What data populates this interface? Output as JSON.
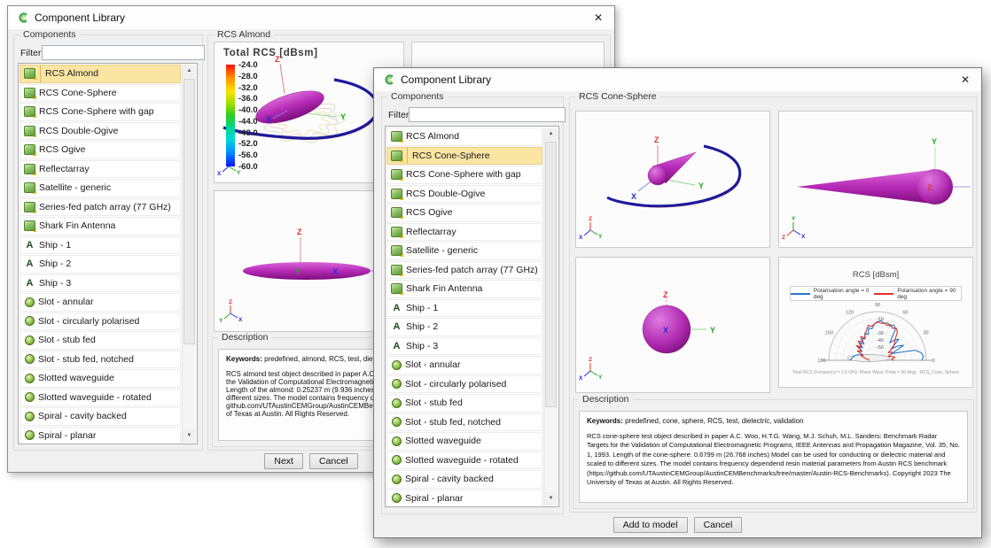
{
  "axis": {
    "x": "X",
    "y": "Y",
    "z": "Z"
  },
  "icons": {
    "close": "✕",
    "scroll_up": "▲",
    "scroll_down": "▼",
    "ship_glyph": "A"
  },
  "components": {
    "items": [
      {
        "label": "RCS Almond",
        "icon": "component"
      },
      {
        "label": "RCS Cone-Sphere",
        "icon": "component"
      },
      {
        "label": "RCS Cone-Sphere with gap",
        "icon": "component"
      },
      {
        "label": "RCS Double-Ogive",
        "icon": "component"
      },
      {
        "label": "RCS Ogive",
        "icon": "component"
      },
      {
        "label": "Reflectarray",
        "icon": "component"
      },
      {
        "label": "Satellite - generic",
        "icon": "component"
      },
      {
        "label": "Series-fed patch array (77 GHz)",
        "icon": "component"
      },
      {
        "label": "Shark Fin Antenna",
        "icon": "component"
      },
      {
        "label": "Ship - 1",
        "icon": "ship"
      },
      {
        "label": "Ship - 2",
        "icon": "ship"
      },
      {
        "label": "Ship - 3",
        "icon": "ship"
      },
      {
        "label": "Slot - annular",
        "icon": "sphere"
      },
      {
        "label": "Slot - circularly polarised",
        "icon": "sphere"
      },
      {
        "label": "Slot - stub fed",
        "icon": "sphere"
      },
      {
        "label": "Slot - stub fed, notched",
        "icon": "sphere"
      },
      {
        "label": "Slotted waveguide",
        "icon": "sphere"
      },
      {
        "label": "Slotted waveguide - rotated",
        "icon": "sphere"
      },
      {
        "label": "Spiral - cavity backed",
        "icon": "sphere"
      },
      {
        "label": "Spiral - planar",
        "icon": "sphere"
      }
    ]
  },
  "back_window": {
    "title": "Component Library",
    "components_label": "Components",
    "filter_label": "Filter",
    "filter_value": "",
    "selected_index": 0,
    "group_title": "RCS Almond",
    "preview_title": "Total RCS [dBsm]",
    "colorbar_labels": [
      "-24.0",
      "-28.0",
      "-32.0",
      "-36.0",
      "-40.0",
      "-44.0",
      "-48.0",
      "-52.0",
      "-56.0",
      "-60.0"
    ],
    "description_label": "Description",
    "keywords_label": "Keywords:",
    "keywords": " predefined, almond, RCS, test, dielectric,",
    "description_lines": [
      "RCS almond test object described in paper A.C. Woo, H.T.G. Wang, M.J. Schuh, M.L. Sanders: Benchmark Radar Targets for",
      "the Validation of Computational Electromagnetic Programs, IEEE Antennas and Propagation Magazine, Vol. 35, No. 1, 1993.",
      "Length of the almond: 0.25237 m (9.936 inches) Model can be used for conducting or dielectric material and scaled to",
      "different sizes. The model contains frequency dependend resin material parameters from Austin RCS benchmark (https://",
      "github.com/UTAustinCEMGroup/AustinCEMBenchmarks/tree/master/Austin-RCS-Benchmarks). Copyright 2023 The University",
      "of Texas at Austin. All Rights Reserved."
    ],
    "next_button": "Next",
    "cancel_button": "Cancel"
  },
  "front_window": {
    "title": "Component Library",
    "components_label": "Components",
    "filter_label": "Filter",
    "filter_value": "",
    "selected_index": 1,
    "group_title": "RCS Cone-Sphere",
    "chart": {
      "type": "polar",
      "title": "RCS [dBsm]",
      "legend": [
        {
          "label": "Polarisation angle = 0 deg",
          "color": "#2878c8"
        },
        {
          "label": "Polarisation angle = 90 deg",
          "color": "#e03028"
        }
      ],
      "angle_ticks": [
        "0",
        "30",
        "60",
        "90",
        "120",
        "150",
        "180"
      ],
      "radial_ticks": [
        "-10",
        "-30",
        "-40",
        "-50"
      ],
      "radial_tick_radii": [
        47,
        31,
        23,
        15
      ],
      "angle_step_deg": 5,
      "caption": "Total RCS (Frequency = 3.0 GHz; Plane Wave Theta = 90 deg) - RCS_Cone_Sphere",
      "series": [
        {
          "name": "Polarisation angle = 0 deg",
          "color": "#2878c8",
          "radii": [
            50,
            52,
            50,
            44,
            26,
            18,
            34,
            28,
            20,
            34,
            30,
            24,
            40,
            44,
            41,
            44,
            42,
            45,
            43,
            41,
            36,
            38,
            31,
            34,
            28,
            30,
            24,
            28,
            22,
            26,
            20,
            25,
            18,
            24,
            27,
            29,
            31
          ]
        },
        {
          "name": "Polarisation angle = 90 deg",
          "color": "#e03028",
          "radii": [
            18,
            16,
            20,
            17,
            13,
            17,
            19,
            15,
            23,
            27,
            31,
            39,
            42,
            40,
            43,
            41,
            43,
            42,
            44,
            41,
            39,
            41,
            36,
            33,
            29,
            33,
            27,
            31,
            24,
            29,
            21,
            25,
            17,
            19,
            14,
            11,
            9
          ]
        }
      ]
    },
    "description_label": "Description",
    "keywords_label": "Keywords:",
    "keywords": " predefined, cone, sphere, RCS, test, dielectric, validation",
    "description_text": "RCS cone-sphere test object described in paper A.C. Woo, H.T.G. Wang, M.J. Schuh, M.L. Sanders: Benchmark Radar Targets for the Validation of Computational Electromagnetic Programs, IEEE Antennas and Propagation Magazine, Vol. 35, No. 1, 1993. Length of the cone-sphere: 0.6799 m (26.768 inches) Model can be used for conducting or dielectric material and scaled to different sizes. The model contains frequency dependend resin material parameters from Austin RCS benchmark (https://github.com/UTAustinCEMGroup/AustinCEMBenchmarks/tree/master/Austin-RCS-Benchmarks). Copyright 2023 The University of Texas at Austin. All Rights Reserved.",
    "add_button": "Add to model",
    "cancel_button": "Cancel"
  }
}
